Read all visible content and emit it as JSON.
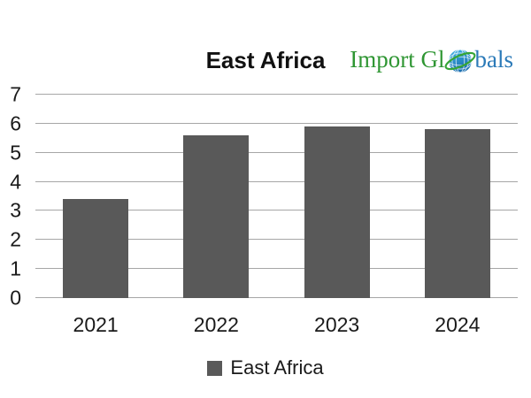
{
  "chart_data": {
    "type": "bar",
    "title": "East Africa",
    "categories": [
      "2021",
      "2022",
      "2023",
      "2024"
    ],
    "series": [
      {
        "name": "East Africa",
        "values": [
          3.4,
          5.6,
          5.9,
          5.8
        ]
      }
    ],
    "xlabel": "",
    "ylabel": "",
    "ylim": [
      0,
      7
    ],
    "ytick_step": 1,
    "grid": true,
    "legend_position": "bottom",
    "colors": {
      "bar": "#595959",
      "gridline": "#a6a6a6",
      "axis_text": "#1a1a1a",
      "title_text": "#111111"
    }
  },
  "logo": {
    "text_left": "Import Gl",
    "text_right": "bals",
    "colors": {
      "green": "#2f9633",
      "blue": "#2b7ab8",
      "globe_light": "#3fb3e6",
      "globe_dark": "#1a6fb0",
      "swoosh": "#35a435"
    }
  },
  "legend": {
    "label": "East Africa",
    "swatch_color": "#595959"
  }
}
